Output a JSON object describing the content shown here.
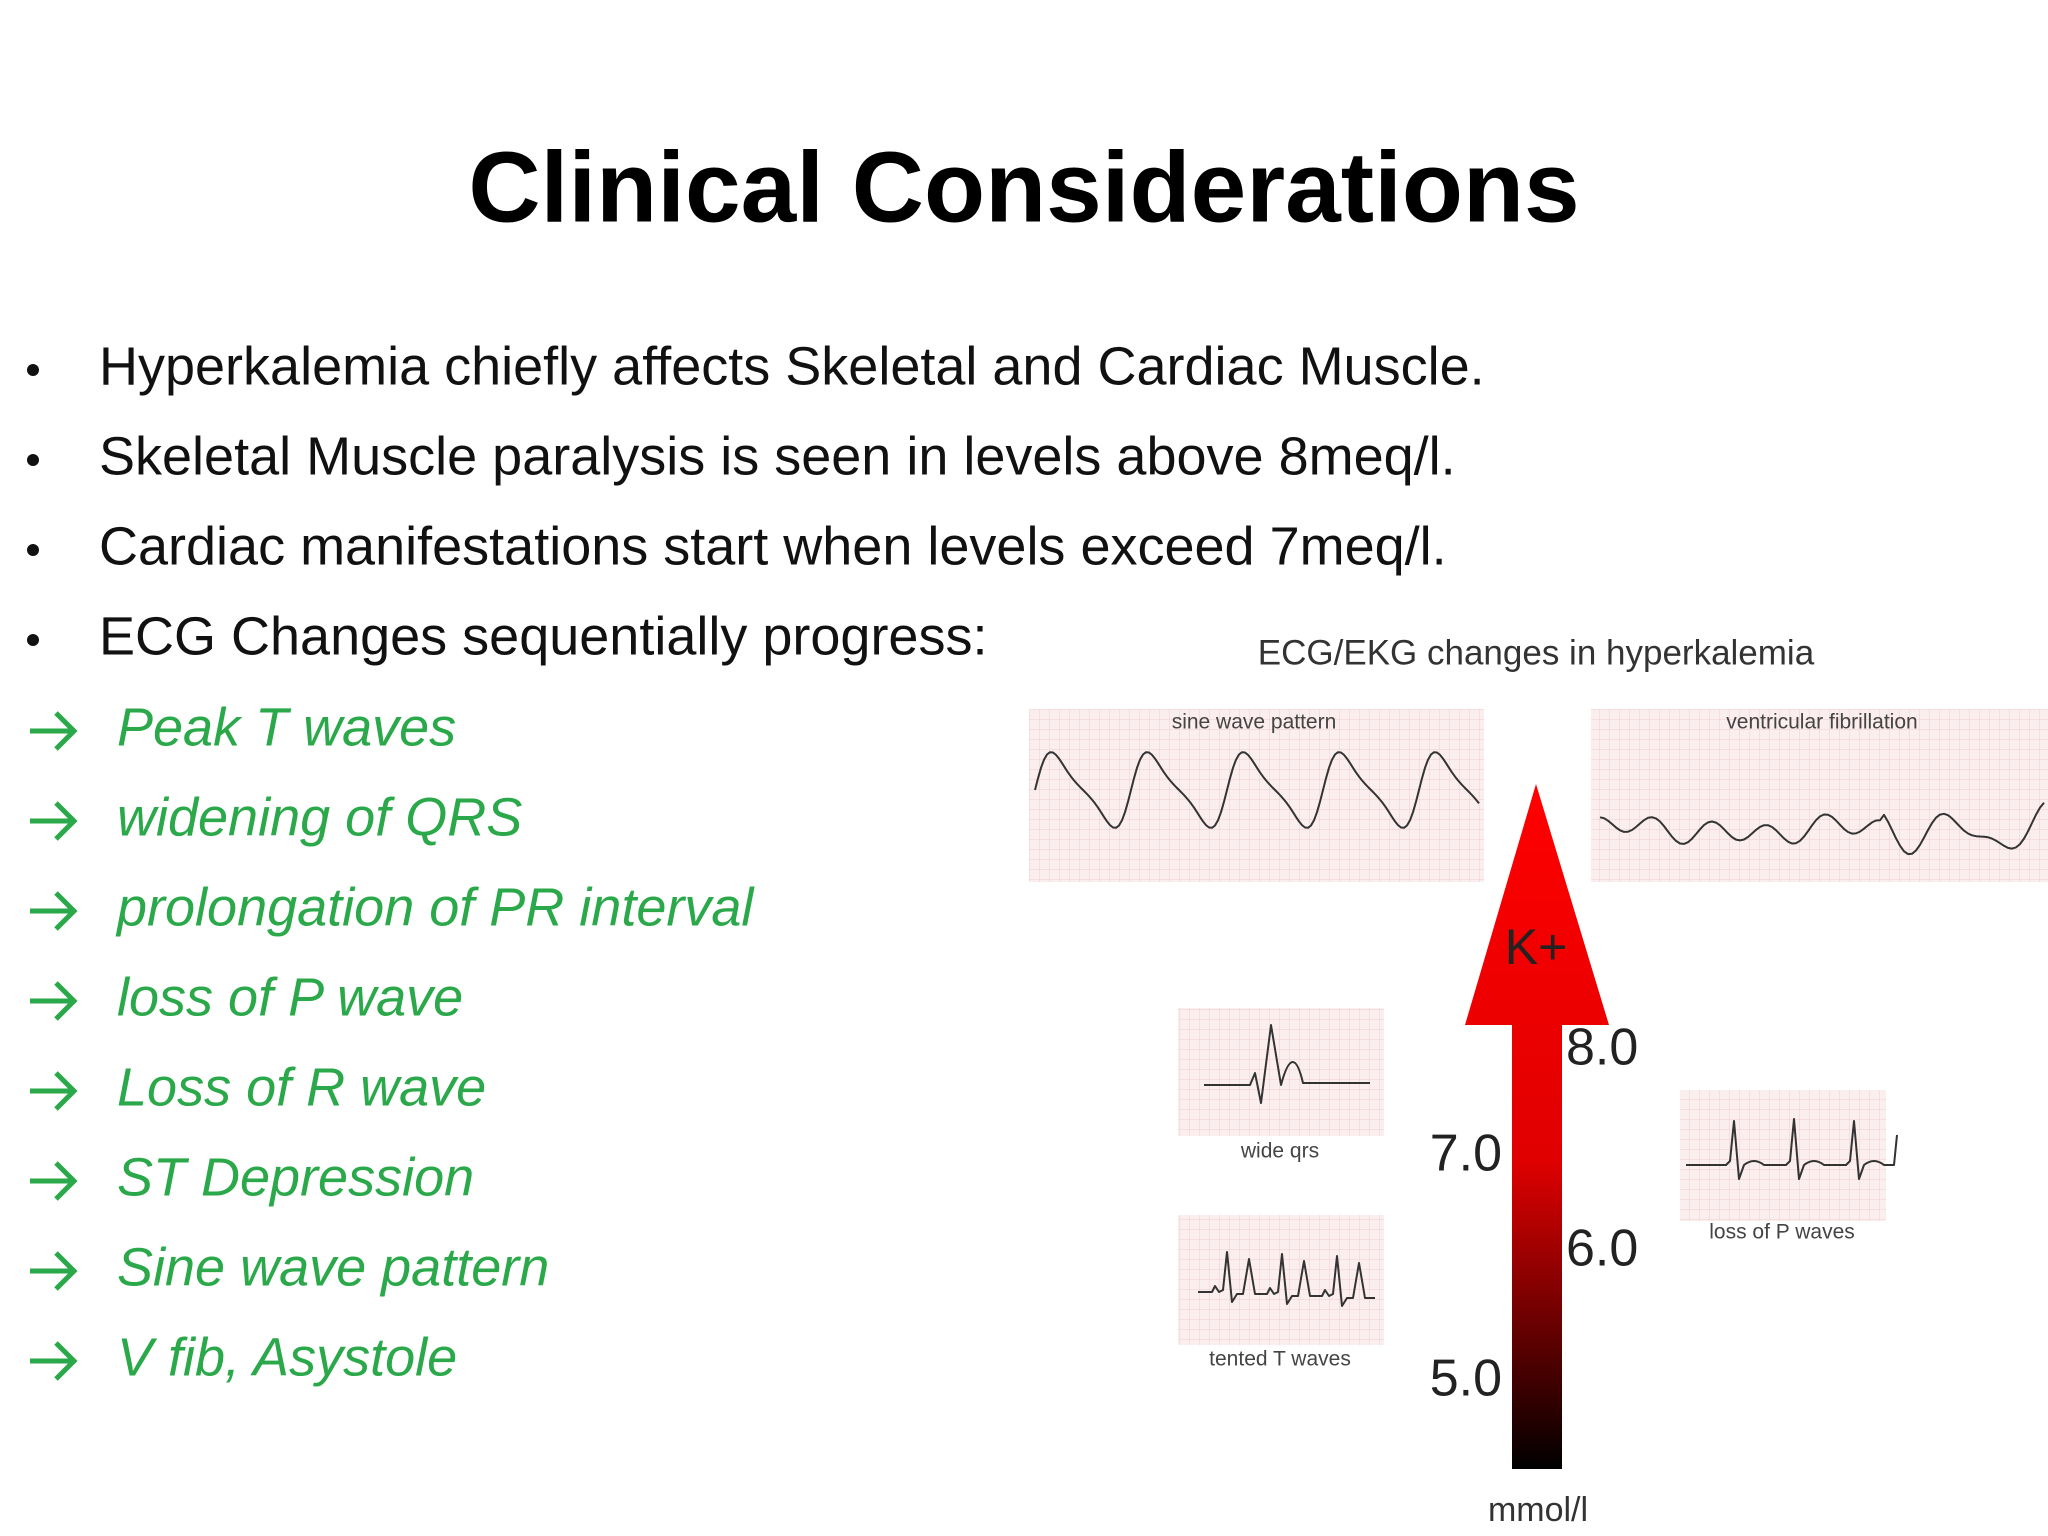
{
  "title": "Clinical Considerations",
  "bullets": [
    "Hyperkalemia chiefly affects Skeletal and Cardiac Muscle.",
    "Skeletal Muscle paralysis is seen in levels above 8meq/l.",
    "Cardiac manifestations start when levels exceed 7meq/l.",
    "ECG Changes sequentially progress:"
  ],
  "steps": [
    "Peak T waves",
    "widening of QRS",
    "prolongation of PR interval",
    "loss of P wave",
    "Loss of R wave",
    "ST Depression",
    "Sine wave pattern",
    "V fib, Asystole"
  ],
  "figure": {
    "title": "ECG/EKG changes in hyperkalemia",
    "panels": {
      "sine": "sine wave pattern",
      "vfib": "ventricular fibrillation",
      "wide_qrs": "wide qrs",
      "tented": "tented T waves",
      "loss_p": "loss of P waves"
    },
    "arrow_label": "K+",
    "scale_labels": [
      "8.0",
      "7.0",
      "6.0",
      "5.0"
    ],
    "unit": "mmol/l"
  }
}
